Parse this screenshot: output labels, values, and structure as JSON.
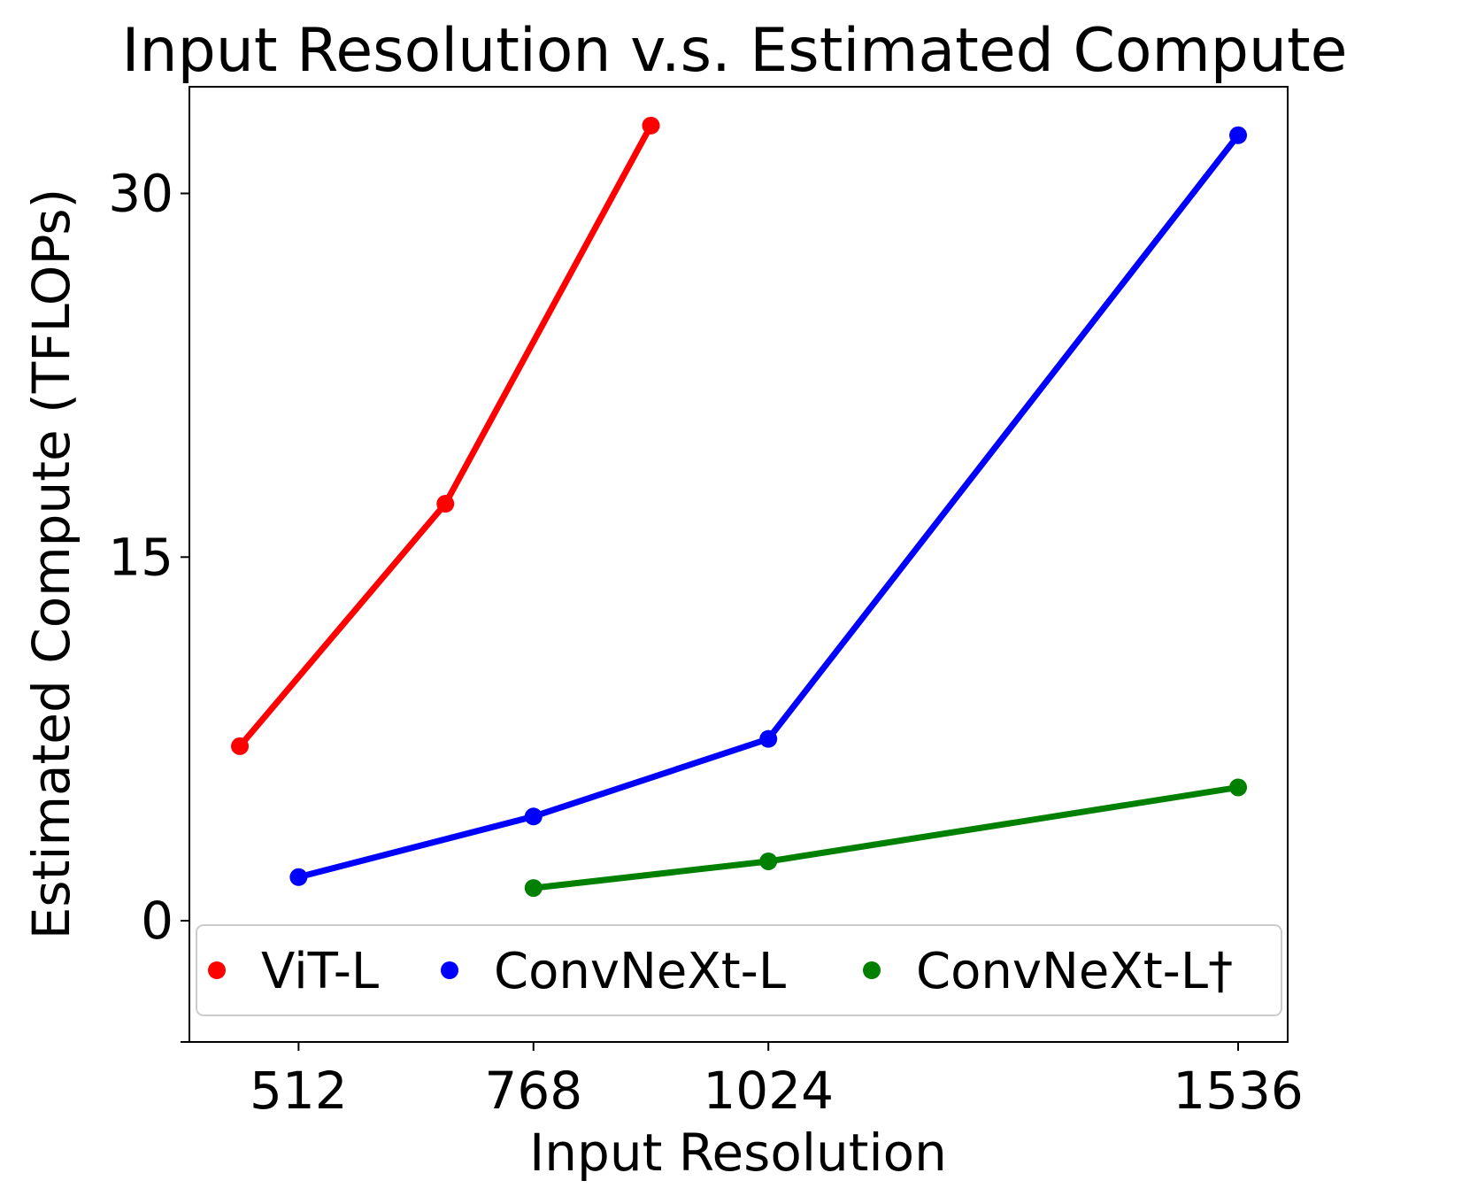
{
  "chart_data": {
    "type": "line",
    "title": "Input Resolution v.s. Estimated Compute",
    "xlabel": "Input Resolution",
    "ylabel": "Estimated Compute (TFLOPs)",
    "xticks": [
      512,
      768,
      1024,
      1536
    ],
    "xtick_labels": [
      "512",
      "768",
      "1024",
      "1536"
    ],
    "yticks": [
      0,
      15,
      30
    ],
    "ytick_labels": [
      "0",
      "15",
      "30"
    ],
    "xlim": [
      393,
      1590
    ],
    "ylim": [
      -5,
      34.4
    ],
    "grid": false,
    "legend_position": "lower-center",
    "series": [
      {
        "name": "ViT-L",
        "color": "#ff0000",
        "points": [
          [
            448,
            7.2
          ],
          [
            672,
            17.2
          ],
          [
            896,
            32.8
          ]
        ]
      },
      {
        "name": "ConvNeXt-L",
        "color": "#0000ff",
        "points": [
          [
            512,
            1.8
          ],
          [
            768,
            4.3
          ],
          [
            1024,
            7.5
          ],
          [
            1536,
            32.4
          ]
        ]
      },
      {
        "name": "ConvNeXt-L†",
        "color": "#008000",
        "points": [
          [
            768,
            1.35
          ],
          [
            1024,
            2.45
          ],
          [
            1536,
            5.5
          ]
        ]
      }
    ]
  }
}
